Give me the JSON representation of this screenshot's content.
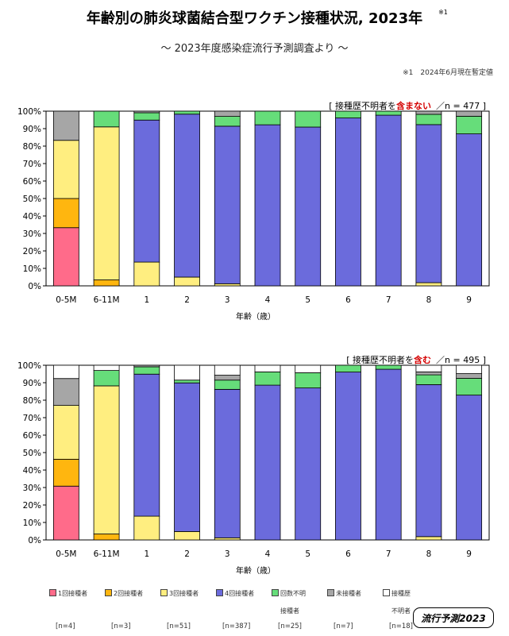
{
  "title": "年齢別の肺炎球菌結合型ワクチン接種状況, 2023年",
  "title_footnote": "※1",
  "subtitle": "～ 2023年度感染症流行予測調査より ～",
  "note": "※1　2024年6月現在暫定値",
  "logo": "流行予測2023",
  "legend": [
    {
      "label": "1回接種者",
      "label2": "",
      "n": "[n=4]",
      "color": "#ff6b8a"
    },
    {
      "label": "2回接種者",
      "label2": "",
      "n": "[n=3]",
      "color": "#ffb60f"
    },
    {
      "label": "3回接種者",
      "label2": "",
      "n": "[n=51]",
      "color": "#ffee80"
    },
    {
      "label": "4回接種者",
      "label2": "",
      "n": "[n=387]",
      "color": "#6b6bdc"
    },
    {
      "label": "回数不明",
      "label2": "接種者",
      "n": "[n=25]",
      "color": "#66dd7a"
    },
    {
      "label": "未接種者",
      "label2": "",
      "n": "[n=7]",
      "color": "#a6a6a6"
    },
    {
      "label": "接種歴",
      "label2": "不明者",
      "n": "[n=18]",
      "color": "#ffffff"
    }
  ],
  "chart_data": [
    {
      "type": "bar",
      "stacked": true,
      "annotation": {
        "pre": "[ 接種歴不明者を",
        "emph": "含まない",
        "post": "／n = 477 ]"
      },
      "xlabel": "年齢（歳）",
      "ylabel": "",
      "ylim": [
        0,
        100
      ],
      "yticks": [
        "0%",
        "10%",
        "20%",
        "30%",
        "40%",
        "50%",
        "60%",
        "70%",
        "80%",
        "90%",
        "100%"
      ],
      "categories": [
        "0-5M",
        "6-11M",
        "1",
        "2",
        "3",
        "4",
        "5",
        "6",
        "7",
        "8",
        "9"
      ],
      "series": [
        {
          "name": "1回接種者",
          "values": [
            33.3,
            0,
            0,
            0,
            0,
            0,
            0,
            0,
            0,
            0,
            0
          ]
        },
        {
          "name": "2回接種者",
          "values": [
            16.7,
            3.4,
            0,
            0,
            0,
            0,
            0,
            0,
            0,
            0,
            0
          ]
        },
        {
          "name": "3回接種者",
          "values": [
            33.3,
            87.6,
            13.6,
            5,
            1.2,
            0,
            0,
            0,
            0,
            1.8,
            0
          ]
        },
        {
          "name": "4回接種者",
          "values": [
            0,
            0,
            81.3,
            93.3,
            90.2,
            92.2,
            90.9,
            96.1,
            97.7,
            90.5,
            87
          ]
        },
        {
          "name": "回数不明接種者",
          "values": [
            0,
            9,
            4.2,
            1.7,
            5.6,
            7.8,
            9.1,
            3.9,
            2.3,
            5.9,
            10.1
          ]
        },
        {
          "name": "未接種者",
          "values": [
            16.7,
            0,
            0.9,
            0,
            3,
            0,
            0,
            0,
            0,
            1.8,
            2.9
          ]
        }
      ]
    },
    {
      "type": "bar",
      "stacked": true,
      "annotation": {
        "pre": "[ 接種歴不明者を",
        "emph": "含む",
        "post": "／n = 495 ]"
      },
      "xlabel": "年齢（歳）",
      "ylabel": "",
      "ylim": [
        0,
        100
      ],
      "yticks": [
        "0%",
        "10%",
        "20%",
        "30%",
        "40%",
        "50%",
        "60%",
        "70%",
        "80%",
        "90%",
        "100%"
      ],
      "categories": [
        "0-5M",
        "6-11M",
        "1",
        "2",
        "3",
        "4",
        "5",
        "6",
        "7",
        "8",
        "9"
      ],
      "series": [
        {
          "name": "1回接種者",
          "values": [
            30.8,
            0,
            0,
            0,
            0,
            0,
            0,
            0,
            0,
            0,
            0
          ]
        },
        {
          "name": "2回接種者",
          "values": [
            15.4,
            3.4,
            0,
            0,
            0,
            0,
            0,
            0,
            0,
            0,
            0
          ]
        },
        {
          "name": "3回接種者",
          "values": [
            30.8,
            84.8,
            13.6,
            4.8,
            1.2,
            0,
            0,
            0,
            0,
            1.9,
            0
          ]
        },
        {
          "name": "4回接種者",
          "values": [
            0,
            0,
            81.3,
            85.1,
            85,
            88.6,
            87,
            96.1,
            97.7,
            87,
            82.9
          ]
        },
        {
          "name": "回数不明接種者",
          "values": [
            0,
            8.8,
            4.2,
            1.6,
            5.3,
            7.6,
            8.7,
            3.9,
            2.3,
            5.6,
            9.6
          ]
        },
        {
          "name": "未接種者",
          "values": [
            15.4,
            0,
            0.9,
            0,
            2.8,
            0,
            0,
            0,
            0,
            1.7,
            2.7
          ]
        },
        {
          "name": "接種歴不明者",
          "values": [
            7.6,
            3,
            0,
            8.5,
            5.7,
            3.8,
            4.3,
            0,
            0,
            3.8,
            4.8
          ]
        }
      ]
    }
  ]
}
